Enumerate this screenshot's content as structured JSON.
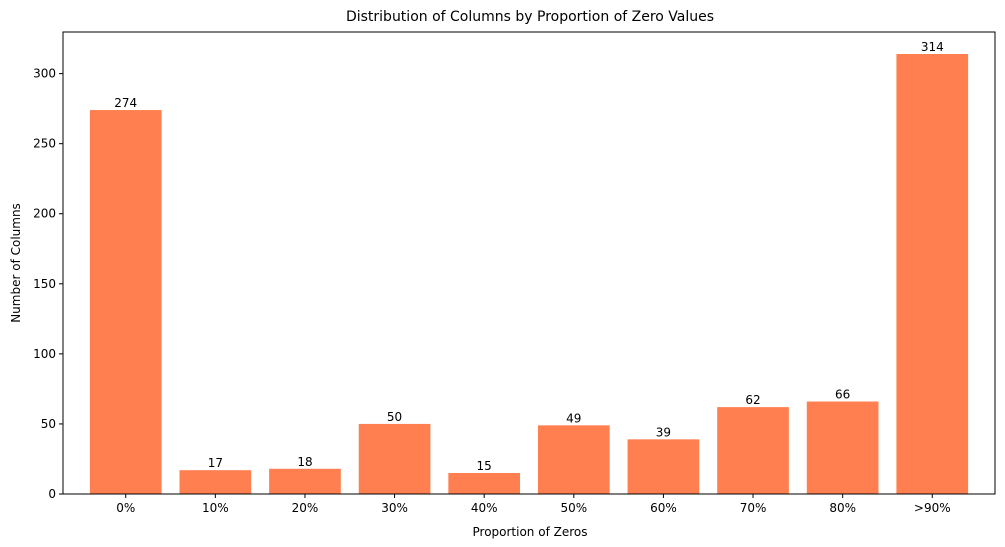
{
  "chart_data": {
    "type": "bar",
    "title": "Distribution of Columns by Proportion of Zero Values",
    "xlabel": "Proportion of Zeros",
    "ylabel": "Number of Columns",
    "categories": [
      "0%",
      "10%",
      "20%",
      "30%",
      "40%",
      "50%",
      "60%",
      "70%",
      "80%",
      ">90%"
    ],
    "values": [
      274,
      17,
      18,
      50,
      15,
      49,
      39,
      62,
      66,
      314
    ],
    "ylim": [
      0,
      329.7
    ],
    "yticks": [
      0,
      50,
      100,
      150,
      200,
      250,
      300
    ],
    "bar_color": "#ff7f50",
    "grid": false,
    "data_labels": true
  }
}
